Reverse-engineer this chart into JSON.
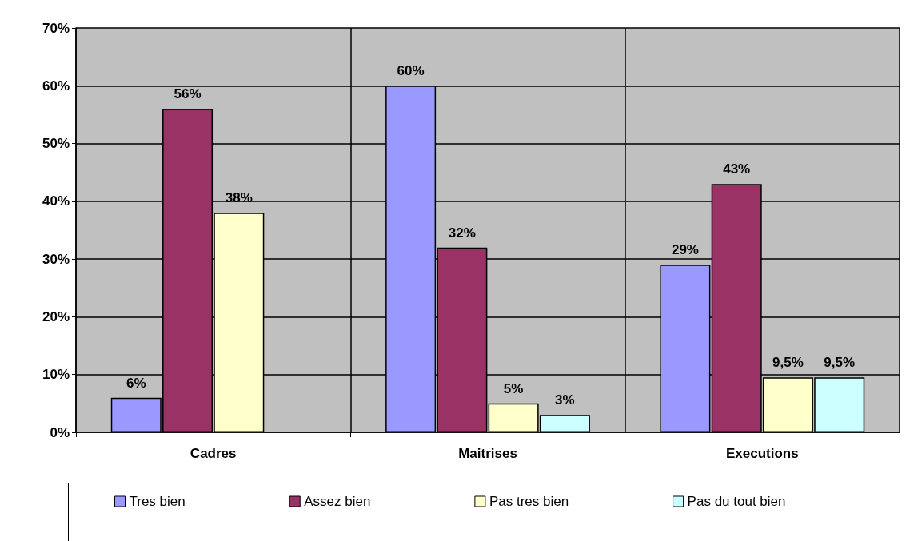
{
  "chart_data": {
    "type": "bar",
    "categories": [
      "Cadres",
      "Maitrises",
      "Executions"
    ],
    "series": [
      {
        "name": "Tres bien",
        "color": "#9999ff",
        "values": [
          6,
          60,
          29
        ],
        "value_labels": [
          "6%",
          "60%",
          "29%"
        ]
      },
      {
        "name": "Assez bien",
        "color": "#993366",
        "values": [
          56,
          32,
          43
        ],
        "value_labels": [
          "56%",
          "32%",
          "43%"
        ]
      },
      {
        "name": "Pas tres bien",
        "color": "#ffffcc",
        "values": [
          38,
          5,
          9.5
        ],
        "value_labels": [
          "38%",
          "5%",
          "9,5%"
        ]
      },
      {
        "name": "Pas du tout bien",
        "color": "#ccffff",
        "values": [
          null,
          3,
          9.5
        ],
        "value_labels": [
          null,
          "3%",
          "9,5%"
        ]
      }
    ],
    "ylim": [
      0,
      70
    ],
    "yticks": [
      {
        "value": 0,
        "label": "0%"
      },
      {
        "value": 10,
        "label": "10%"
      },
      {
        "value": 20,
        "label": "20%"
      },
      {
        "value": 30,
        "label": "30%"
      },
      {
        "value": 40,
        "label": "40%"
      },
      {
        "value": 50,
        "label": "50%"
      },
      {
        "value": 60,
        "label": "60%"
      },
      {
        "value": 70,
        "label": "70%"
      }
    ],
    "grid": true,
    "legend": "bottom"
  }
}
